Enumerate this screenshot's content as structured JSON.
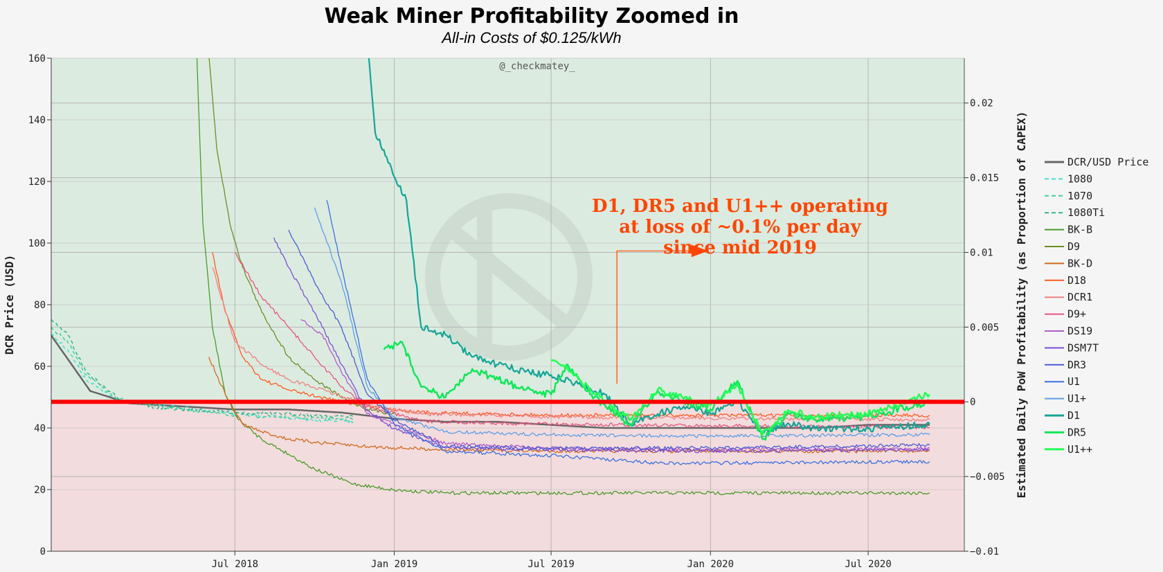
{
  "chart_data": {
    "type": "line",
    "title": "Weak Miner Profitability Zoomed in",
    "subtitle": "All-in Costs of $0.125/kWh",
    "watermark": "@_checkmatey_",
    "ylabel": "DCR Price (USD)",
    "y2label": "Estimated Daily PoW Profitability (as Proportion of CAPEX)",
    "ylim": [
      0,
      160
    ],
    "y2lim": [
      -0.01,
      0.023
    ],
    "xlim": [
      "2017-12-01",
      "2020-10-20"
    ],
    "grid": true,
    "legend_position": "right",
    "breakeven_color": "#ff0000",
    "profit_zone_color": "#dcebe0",
    "loss_zone_color": "#f3dcdd",
    "x_ticks": [
      {
        "date": "2018-07-01",
        "label": "Jul 2018"
      },
      {
        "date": "2019-01-01",
        "label": "Jan 2019"
      },
      {
        "date": "2019-07-01",
        "label": "Jul 2019"
      },
      {
        "date": "2020-01-01",
        "label": "Jan 2020"
      },
      {
        "date": "2020-07-01",
        "label": "Jul 2020"
      }
    ],
    "y_ticks": [
      "0",
      "20",
      "40",
      "60",
      "80",
      "100",
      "120",
      "140",
      "160"
    ],
    "y2_ticks": [
      "−0.01",
      "−0.005",
      "0",
      "0.005",
      "0.01",
      "0.015",
      "0.02"
    ],
    "y2_tick_values": [
      -0.01,
      -0.005,
      0,
      0.005,
      0.01,
      0.015,
      0.02
    ],
    "annotation": {
      "lines": [
        "D1, DR5 and U1++ operating",
        "at loss of ~0.1% per day",
        "since mid 2019"
      ],
      "color": "#ff4500",
      "arrow_from": {
        "date": "2019-09-15",
        "value": 0.0012
      },
      "arrow_to": {
        "date": "2019-12-10",
        "value": 0.0101
      }
    },
    "series": [
      {
        "name": "DCR/USD Price",
        "axis": "y",
        "color": "#666666",
        "dash": "solid",
        "width": 2.5,
        "points": [
          [
            "2017-12-01",
            70
          ],
          [
            "2018-01-15",
            52
          ],
          [
            "2018-03-01",
            48
          ],
          [
            "2018-05-01",
            47
          ],
          [
            "2018-07-01",
            46
          ],
          [
            "2018-09-01",
            46
          ],
          [
            "2018-11-01",
            45
          ],
          [
            "2019-01-01",
            43
          ],
          [
            "2019-03-01",
            42
          ],
          [
            "2019-05-01",
            42
          ],
          [
            "2019-07-01",
            41
          ],
          [
            "2019-09-01",
            40
          ],
          [
            "2019-11-01",
            40
          ],
          [
            "2020-01-01",
            40
          ],
          [
            "2020-03-01",
            40
          ],
          [
            "2020-05-01",
            40
          ],
          [
            "2020-07-01",
            41
          ],
          [
            "2020-09-10",
            41
          ]
        ]
      },
      {
        "name": "1080",
        "axis": "y2",
        "color": "#40e0d0",
        "dash": "5,4",
        "width": 1.5,
        "points": [
          [
            "2017-12-01",
            0.0045
          ],
          [
            "2017-12-20",
            0.0035
          ],
          [
            "2018-01-10",
            0.0015
          ],
          [
            "2018-02-15",
            0.0001
          ],
          [
            "2018-04-01",
            -0.0002
          ],
          [
            "2018-07-01",
            -0.0008
          ],
          [
            "2018-10-01",
            -0.0012
          ],
          [
            "2018-11-15",
            -0.0013
          ]
        ]
      },
      {
        "name": "1070",
        "axis": "y2",
        "color": "#3cd39a",
        "dash": "5,4",
        "width": 1.5,
        "points": [
          [
            "2017-12-01",
            0.005
          ],
          [
            "2017-12-20",
            0.004
          ],
          [
            "2018-01-10",
            0.0018
          ],
          [
            "2018-02-15",
            0.0002
          ],
          [
            "2018-04-01",
            -0.0003
          ],
          [
            "2018-07-01",
            -0.0009
          ],
          [
            "2018-10-01",
            -0.0011
          ],
          [
            "2018-11-15",
            -0.0012
          ]
        ]
      },
      {
        "name": "1080Ti",
        "axis": "y2",
        "color": "#2eb88a",
        "dash": "5,4",
        "width": 1.5,
        "points": [
          [
            "2017-12-01",
            0.0055
          ],
          [
            "2017-12-20",
            0.0045
          ],
          [
            "2018-01-10",
            0.002
          ],
          [
            "2018-02-15",
            0.0003
          ],
          [
            "2018-04-01",
            -0.0004
          ],
          [
            "2018-07-01",
            -0.0007
          ],
          [
            "2018-10-01",
            -0.0009
          ],
          [
            "2018-11-15",
            -0.001
          ]
        ]
      },
      {
        "name": "BK-B",
        "axis": "y2",
        "color": "#4a9a2a",
        "dash": "solid",
        "width": 1.3,
        "points": [
          [
            "2018-05-15",
            0.028
          ],
          [
            "2018-05-25",
            0.012
          ],
          [
            "2018-06-05",
            0.005
          ],
          [
            "2018-06-20",
            0.0005
          ],
          [
            "2018-07-05",
            -0.0012
          ],
          [
            "2018-08-01",
            -0.0025
          ],
          [
            "2018-09-01",
            -0.0035
          ],
          [
            "2018-10-01",
            -0.0045
          ],
          [
            "2018-11-15",
            -0.0055
          ],
          [
            "2019-01-01",
            -0.0059
          ],
          [
            "2019-03-01",
            -0.0061
          ],
          [
            "2019-07-01",
            -0.0061
          ],
          [
            "2020-01-01",
            -0.0061
          ],
          [
            "2020-09-10",
            -0.0061
          ]
        ]
      },
      {
        "name": "D9",
        "axis": "y2",
        "color": "#6b8e23",
        "dash": "solid",
        "width": 1.3,
        "points": [
          [
            "2018-05-25",
            0.028
          ],
          [
            "2018-06-10",
            0.017
          ],
          [
            "2018-06-25",
            0.012
          ],
          [
            "2018-07-10",
            0.009
          ],
          [
            "2018-08-01",
            0.006
          ],
          [
            "2018-09-01",
            0.003
          ],
          [
            "2018-10-01",
            0.0015
          ],
          [
            "2018-11-01",
            0.0003
          ],
          [
            "2018-12-01",
            -0.0005
          ],
          [
            "2019-01-01",
            -0.0008
          ]
        ]
      },
      {
        "name": "BK-D",
        "axis": "y2",
        "color": "#d2691e",
        "dash": "solid",
        "width": 1.3,
        "points": [
          [
            "2018-06-01",
            0.003
          ],
          [
            "2018-06-20",
            0.0005
          ],
          [
            "2018-07-10",
            -0.0015
          ],
          [
            "2018-08-01",
            -0.002
          ],
          [
            "2018-09-01",
            -0.0025
          ],
          [
            "2018-10-01",
            -0.0027
          ],
          [
            "2018-12-01",
            -0.003
          ],
          [
            "2019-03-01",
            -0.0032
          ],
          [
            "2019-07-01",
            -0.0033
          ],
          [
            "2020-01-01",
            -0.0033
          ],
          [
            "2020-09-10",
            -0.0033
          ]
        ]
      },
      {
        "name": "D18",
        "axis": "y2",
        "color": "#ff5a1f",
        "dash": "solid",
        "width": 1.3,
        "points": [
          [
            "2018-06-05",
            0.01
          ],
          [
            "2018-06-20",
            0.006
          ],
          [
            "2018-07-10",
            0.003
          ],
          [
            "2018-08-01",
            0.0015
          ],
          [
            "2018-09-01",
            0.0008
          ],
          [
            "2018-10-15",
            0.0002
          ],
          [
            "2018-12-01",
            -0.0003
          ],
          [
            "2019-02-01",
            -0.0007
          ],
          [
            "2019-07-01",
            -0.0009
          ],
          [
            "2020-01-01",
            -0.0009
          ],
          [
            "2020-09-10",
            -0.0009
          ]
        ]
      },
      {
        "name": "DCR1",
        "axis": "y2",
        "color": "#f08080",
        "dash": "solid",
        "width": 1.3,
        "points": [
          [
            "2018-06-05",
            0.009
          ],
          [
            "2018-07-01",
            0.004
          ],
          [
            "2018-08-01",
            0.0025
          ],
          [
            "2018-09-01",
            0.0015
          ],
          [
            "2018-10-15",
            0.0007
          ],
          [
            "2018-12-01",
            -0.0002
          ],
          [
            "2019-02-01",
            -0.0008
          ],
          [
            "2019-07-01",
            -0.001
          ],
          [
            "2020-01-01",
            -0.0011
          ],
          [
            "2020-09-10",
            -0.0012
          ]
        ]
      },
      {
        "name": "D9+",
        "axis": "y2",
        "color": "#e75480",
        "dash": "solid",
        "width": 1.3,
        "points": [
          [
            "2018-07-01",
            0.01
          ],
          [
            "2018-08-01",
            0.007
          ],
          [
            "2018-09-01",
            0.005
          ],
          [
            "2018-10-01",
            0.003
          ],
          [
            "2018-11-01",
            0.001
          ],
          [
            "2018-12-01",
            -0.0003
          ],
          [
            "2019-02-01",
            -0.0013
          ],
          [
            "2019-07-01",
            -0.0015
          ],
          [
            "2020-01-01",
            -0.0016
          ],
          [
            "2020-09-10",
            -0.0017
          ]
        ]
      },
      {
        "name": "DS19",
        "axis": "y2",
        "color": "#b05cc8",
        "dash": "solid",
        "width": 1.3,
        "points": [
          [
            "2018-09-15",
            0.0055
          ],
          [
            "2018-10-10",
            0.0045
          ],
          [
            "2018-11-01",
            0.002
          ],
          [
            "2018-12-01",
            -0.0008
          ],
          [
            "2019-01-01",
            -0.0015
          ],
          [
            "2019-03-01",
            -0.0028
          ],
          [
            "2019-07-01",
            -0.0031
          ],
          [
            "2020-01-01",
            -0.0032
          ],
          [
            "2020-09-10",
            -0.0031
          ]
        ]
      },
      {
        "name": "DSM7T",
        "axis": "y2",
        "color": "#7b4fd4",
        "dash": "solid",
        "width": 1.3,
        "points": [
          [
            "2018-08-15",
            0.011
          ],
          [
            "2018-09-01",
            0.009
          ],
          [
            "2018-10-01",
            0.006
          ],
          [
            "2018-11-01",
            0.0025
          ],
          [
            "2018-12-01",
            -0.0006
          ],
          [
            "2019-01-01",
            -0.0018
          ],
          [
            "2019-03-01",
            -0.0031
          ],
          [
            "2019-07-01",
            -0.0032
          ],
          [
            "2020-01-01",
            -0.0033
          ],
          [
            "2020-09-10",
            -0.0032
          ]
        ]
      },
      {
        "name": "DR3",
        "axis": "y2",
        "color": "#4a5bd4",
        "dash": "solid",
        "width": 1.3,
        "points": [
          [
            "2018-09-01",
            0.0115
          ],
          [
            "2018-10-01",
            0.008
          ],
          [
            "2018-11-01",
            0.005
          ],
          [
            "2018-12-01",
            0.0005
          ],
          [
            "2019-01-01",
            -0.0012
          ],
          [
            "2019-03-01",
            -0.003
          ],
          [
            "2019-07-01",
            -0.0031
          ],
          [
            "2020-01-01",
            -0.0031
          ],
          [
            "2020-09-10",
            -0.0029
          ]
        ]
      },
      {
        "name": "U1",
        "axis": "y2",
        "color": "#3a70e0",
        "dash": "solid",
        "width": 1.3,
        "points": [
          [
            "2018-10-15",
            0.0135
          ],
          [
            "2018-11-01",
            0.009
          ],
          [
            "2018-12-01",
            0.0015
          ],
          [
            "2019-01-01",
            -0.0015
          ],
          [
            "2019-03-01",
            -0.0033
          ],
          [
            "2019-07-01",
            -0.0036
          ],
          [
            "2019-11-01",
            -0.0041
          ],
          [
            "2020-01-01",
            -0.0041
          ],
          [
            "2020-09-10",
            -0.004
          ]
        ]
      },
      {
        "name": "U1+",
        "axis": "y2",
        "color": "#5b9ee8",
        "dash": "solid",
        "width": 1.3,
        "points": [
          [
            "2018-10-01",
            0.013
          ],
          [
            "2018-11-01",
            0.008
          ],
          [
            "2018-12-01",
            0.001
          ],
          [
            "2019-01-01",
            -0.001
          ],
          [
            "2019-03-01",
            -0.002
          ],
          [
            "2019-07-01",
            -0.0022
          ],
          [
            "2020-01-01",
            -0.0023
          ],
          [
            "2020-09-10",
            -0.0022
          ]
        ]
      },
      {
        "name": "D1",
        "axis": "y2",
        "color": "#13a596",
        "dash": "solid",
        "width": 2.2,
        "points": [
          [
            "2018-11-25",
            0.028
          ],
          [
            "2018-12-10",
            0.018
          ],
          [
            "2018-12-25",
            0.016
          ],
          [
            "2019-01-15",
            0.0135
          ],
          [
            "2019-02-01",
            0.005
          ],
          [
            "2019-03-01",
            0.0045
          ],
          [
            "2019-04-01",
            0.003
          ],
          [
            "2019-05-01",
            0.0025
          ],
          [
            "2019-06-01",
            0.002
          ],
          [
            "2019-07-01",
            0.0018
          ],
          [
            "2019-08-01",
            0.0012
          ],
          [
            "2019-09-01",
            0.0005
          ],
          [
            "2019-10-01",
            -0.0015
          ],
          [
            "2019-11-01",
            -0.0008
          ],
          [
            "2019-12-01",
            -0.0003
          ],
          [
            "2020-01-01",
            -0.0008
          ],
          [
            "2020-02-01",
            0.0
          ],
          [
            "2020-03-01",
            -0.002
          ],
          [
            "2020-04-01",
            -0.0015
          ],
          [
            "2020-05-01",
            -0.0018
          ],
          [
            "2020-07-01",
            -0.0018
          ],
          [
            "2020-09-10",
            -0.0015
          ]
        ]
      },
      {
        "name": "DR5",
        "axis": "y2",
        "color": "#12e65a",
        "dash": "solid",
        "width": 2.5,
        "points": [
          [
            "2018-12-20",
            0.0035
          ],
          [
            "2019-01-10",
            0.004
          ],
          [
            "2019-02-01",
            0.001
          ],
          [
            "2019-03-01",
            0.0003
          ],
          [
            "2019-04-01",
            0.0022
          ],
          [
            "2019-05-01",
            0.0015
          ],
          [
            "2019-06-01",
            0.0008
          ],
          [
            "2019-07-01",
            0.0005
          ],
          [
            "2019-07-20",
            0.0025
          ],
          [
            "2019-08-15",
            0.0005
          ],
          [
            "2019-09-01",
            -0.0002
          ],
          [
            "2019-10-01",
            -0.0016
          ],
          [
            "2019-11-01",
            0.0007
          ],
          [
            "2019-12-01",
            0.0
          ],
          [
            "2020-01-01",
            -0.0005
          ],
          [
            "2020-02-01",
            0.0014
          ],
          [
            "2020-03-01",
            -0.0025
          ],
          [
            "2020-04-01",
            -0.0008
          ],
          [
            "2020-05-01",
            -0.0012
          ],
          [
            "2020-07-01",
            -0.001
          ],
          [
            "2020-09-10",
            0.0
          ]
        ]
      },
      {
        "name": "U1++",
        "axis": "y2",
        "color": "#22ff55",
        "dash": "solid",
        "width": 2.5,
        "points": [
          [
            "2019-07-01",
            0.0028
          ],
          [
            "2019-07-20",
            0.0022
          ],
          [
            "2019-08-15",
            0.0008
          ],
          [
            "2019-09-01",
            0.0
          ],
          [
            "2019-10-01",
            -0.0012
          ],
          [
            "2019-11-01",
            0.0008
          ],
          [
            "2019-12-01",
            0.0002
          ],
          [
            "2020-01-01",
            -0.0002
          ],
          [
            "2020-02-01",
            0.0012
          ],
          [
            "2020-03-01",
            -0.0022
          ],
          [
            "2020-04-01",
            -0.0006
          ],
          [
            "2020-05-01",
            -0.001
          ],
          [
            "2020-07-01",
            -0.0008
          ],
          [
            "2020-09-10",
            0.0005
          ]
        ]
      }
    ]
  }
}
